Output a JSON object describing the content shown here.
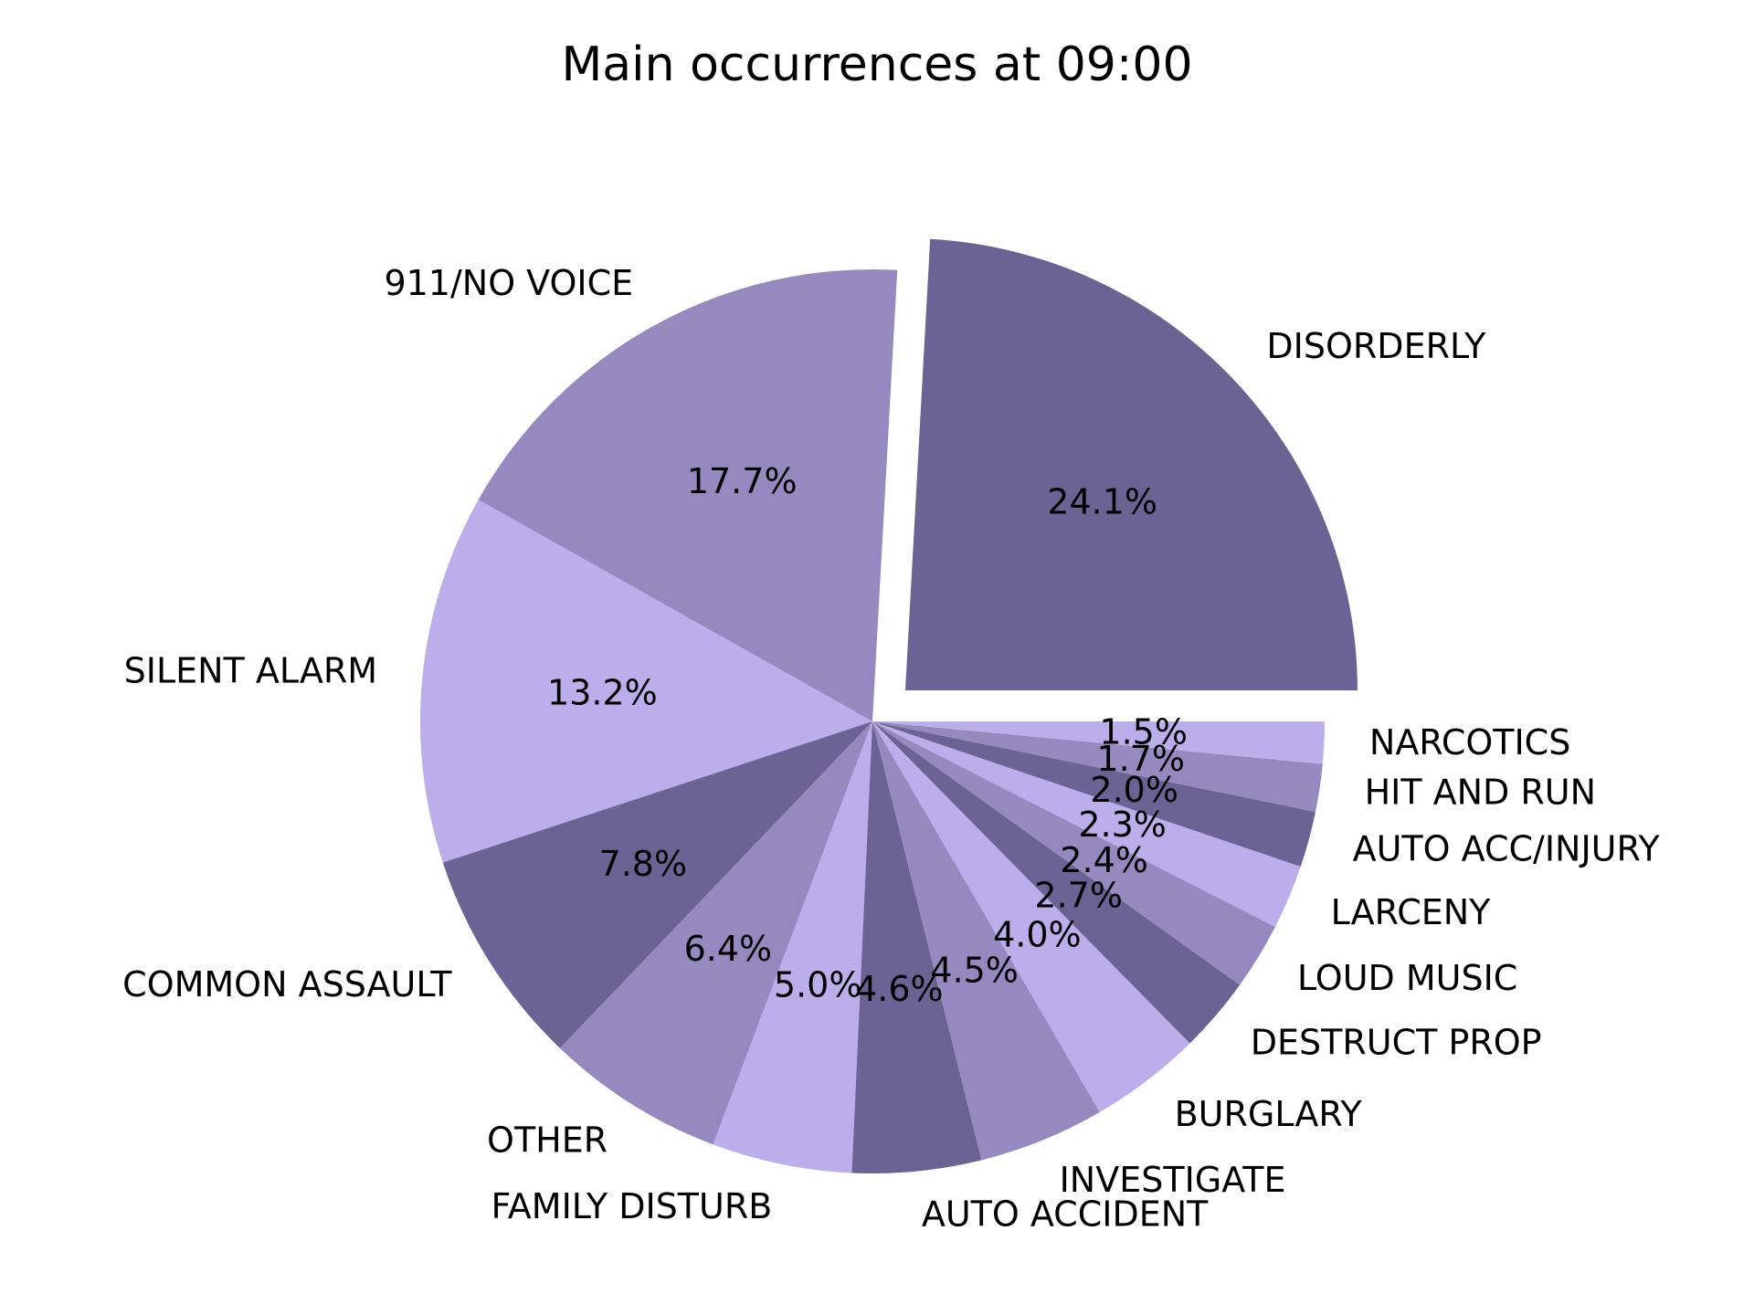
{
  "chart_data": {
    "type": "pie",
    "title": "Main occurrences at 09:00",
    "categories": [
      "DISORDERLY",
      "911/NO  VOICE",
      "SILENT ALARM",
      "COMMON ASSAULT",
      "OTHER",
      "FAMILY DISTURB",
      "AUTO ACCIDENT",
      "INVESTIGATE",
      "BURGLARY",
      "DESTRUCT PROP",
      "LOUD MUSIC",
      "LARCENY",
      "AUTO ACC/INJURY",
      "HIT AND RUN",
      "NARCOTICS"
    ],
    "values": [
      24.1,
      17.7,
      13.2,
      7.8,
      6.4,
      5.0,
      4.6,
      4.5,
      4.0,
      2.7,
      2.4,
      2.3,
      2.0,
      1.7,
      1.5
    ],
    "percent_labels": [
      "24.1%",
      "17.7%",
      "13.2%",
      "7.8%",
      "6.4%",
      "5.0%",
      "4.6%",
      "4.5%",
      "4.0%",
      "2.7%",
      "2.4%",
      "2.3%",
      "2.0%",
      "1.7%",
      "1.5%"
    ],
    "exploded": [
      "DISORDERLY"
    ],
    "start_angle_deg": 0,
    "direction": "counterclockwise",
    "colors": [
      "#6b6394",
      "#9689bf",
      "#bbaeea"
    ],
    "legend": "none"
  }
}
